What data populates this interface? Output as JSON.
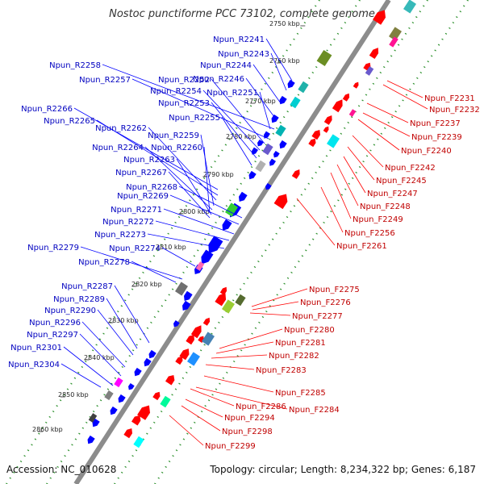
{
  "title": "Nostoc punctiforme PCC 73102, complete genome",
  "footer": {
    "accession": "Accession: NC_010628",
    "topology": "Topology: circular; Length: 8,234,322 bp; Genes: 6,187"
  },
  "ticks": [
    "2750 kbp",
    "2760 kbp",
    "2770 kbp",
    "2780 kbp",
    "2790 kbp",
    "2800 kbp",
    "2810 kbp",
    "2820 kbp",
    "2830 kbp",
    "2840 kbp",
    "2850 kbp",
    "2860 kbp"
  ],
  "forward_genes": [
    "Npun_F2231",
    "Npun_F2232",
    "Npun_F2237",
    "Npun_F2239",
    "Npun_F2240",
    "Npun_F2242",
    "Npun_F2245",
    "Npun_F2247",
    "Npun_F2248",
    "Npun_F2249",
    "Npun_F2256",
    "Npun_F2261",
    "Npun_F2275",
    "Npun_F2276",
    "Npun_F2277",
    "Npun_F2280",
    "Npun_F2281",
    "Npun_F2282",
    "Npun_F2283",
    "Npun_F2285",
    "Npun_F2286",
    "Npun_F2284",
    "Npun_F2294",
    "Npun_F2298",
    "Npun_F2299"
  ],
  "reverse_genes": [
    "Npun_R2241",
    "Npun_R2243",
    "Npun_R2244",
    "Npun_R2246",
    "Npun_R2251",
    "Npun_R2258",
    "Npun_R2257",
    "Npun_R2252",
    "Npun_R2254",
    "Npun_R2253",
    "Npun_R2255",
    "Npun_R2266",
    "Npun_R2265",
    "Npun_R2262",
    "Npun_R2259",
    "Npun_R2264",
    "Npun_R2260",
    "Npun_R2263",
    "Npun_R2267",
    "Npun_R2268",
    "Npun_R2269",
    "Npun_R2271",
    "Npun_R2272",
    "Npun_R2273",
    "Npun_R2279",
    "Npun_R2274",
    "Npun_R2278",
    "Npun_R2287",
    "Npun_R2289",
    "Npun_R2290",
    "Npun_R2296",
    "Npun_R2297",
    "Npun_R2301",
    "Npun_R2304"
  ],
  "colors": {
    "forward": "#ff0000",
    "reverse": "#0000ff",
    "forward_label": "#c00000",
    "reverse_label": "#0000c0",
    "backbone": "#8c8c8c",
    "dots": "#2a8f2a"
  }
}
